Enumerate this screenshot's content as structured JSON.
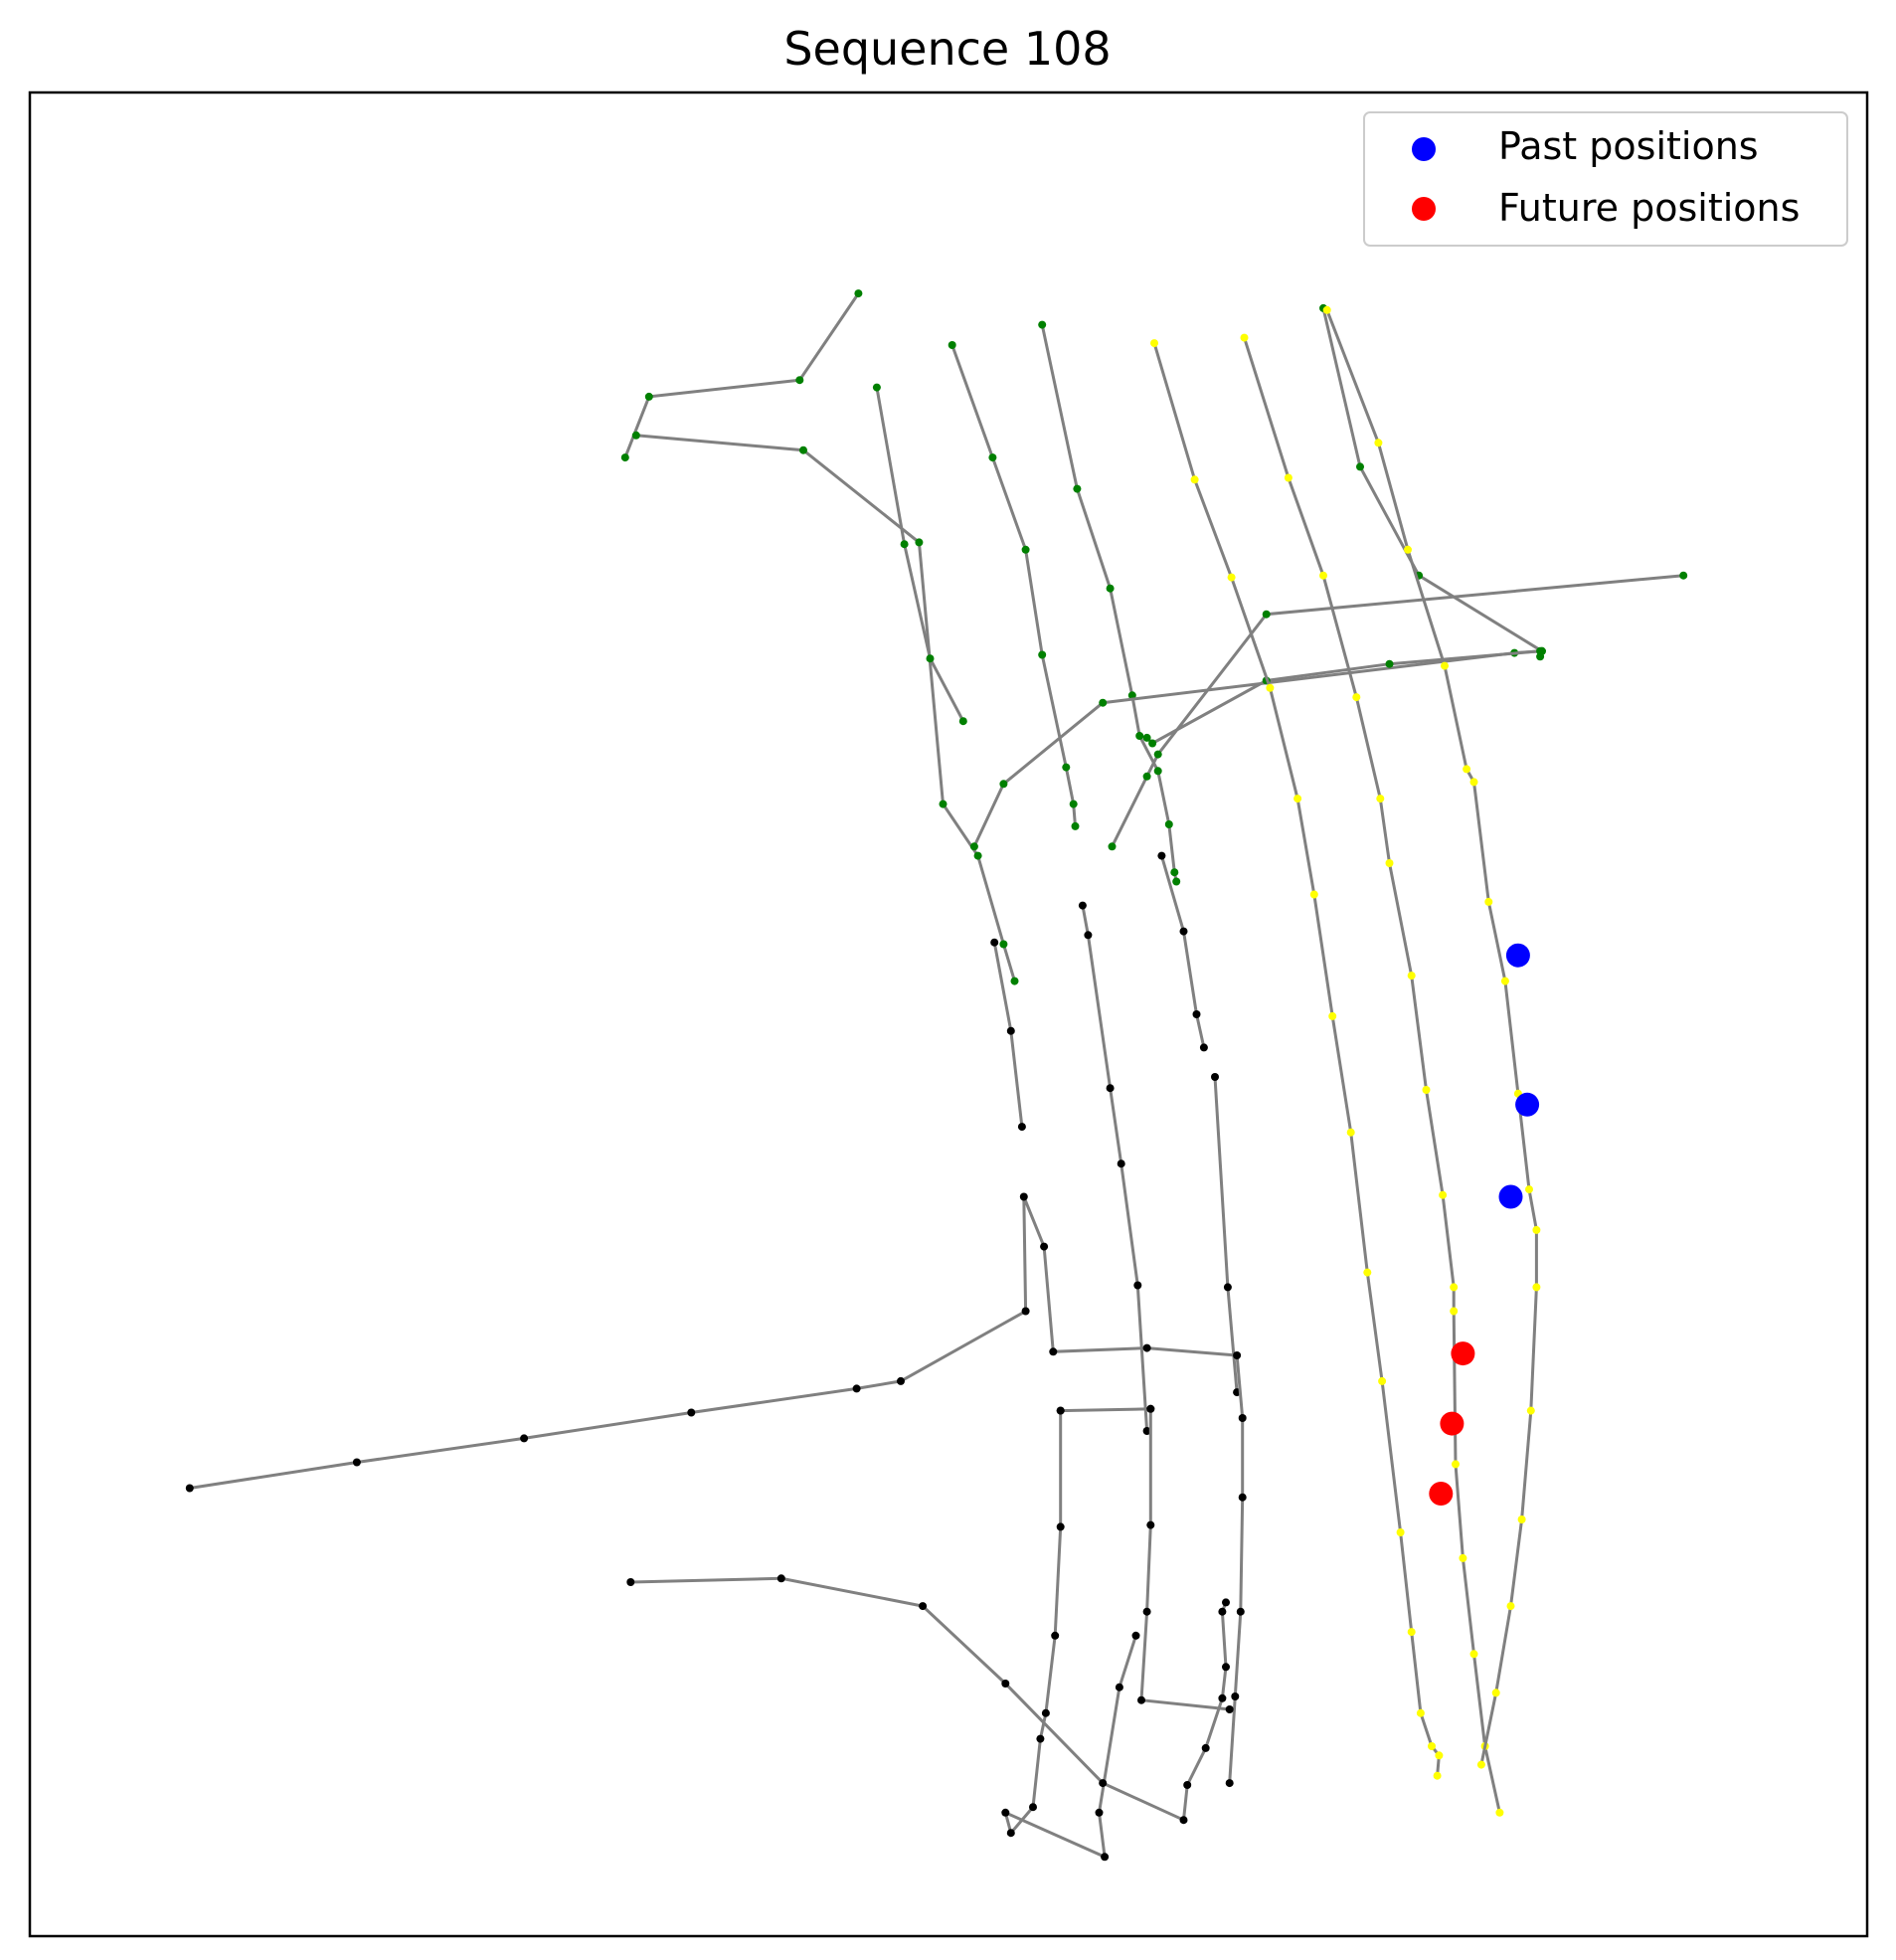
{
  "chart_data": {
    "type": "scatter",
    "title": "Sequence 108",
    "xlim": [
      0,
      1000
    ],
    "ylim": [
      0,
      1000
    ],
    "grid": false,
    "axes_ticks": false,
    "legend": {
      "placement": "top-right",
      "entries": [
        {
          "label": "Past positions",
          "color": "#0000ff"
        },
        {
          "label": "Future positions",
          "color": "#ff0000"
        }
      ]
    },
    "edge_color": "#808080",
    "past_positions": [
      [
        810,
        532
      ],
      [
        815,
        451
      ],
      [
        806,
        401
      ]
    ],
    "future_positions": [
      [
        780,
        316
      ],
      [
        774,
        278
      ],
      [
        768,
        240
      ]
    ],
    "lanes": [
      {
        "color": "#008000",
        "points": [
          [
            451,
            891
          ],
          [
            419,
            844
          ],
          [
            337,
            835
          ],
          [
            324,
            802
          ]
        ]
      },
      {
        "color": "#008000",
        "points": [
          [
            330,
            814
          ],
          [
            421,
            806
          ],
          [
            484,
            756
          ],
          [
            497,
            614
          ],
          [
            516,
            586
          ],
          [
            530,
            538
          ],
          [
            536,
            518
          ]
        ]
      },
      {
        "color": "#008000",
        "points": [
          [
            461,
            840
          ],
          [
            476,
            755
          ],
          [
            490,
            693
          ],
          [
            508,
            659
          ]
        ]
      },
      {
        "color": "#008000",
        "points": [
          [
            502,
            863
          ],
          [
            524,
            802
          ],
          [
            542,
            752
          ],
          [
            551,
            695
          ],
          [
            564,
            634
          ],
          [
            568,
            614
          ],
          [
            569,
            602
          ]
        ]
      },
      {
        "color": "#008000",
        "points": [
          [
            551,
            874
          ],
          [
            570,
            785
          ],
          [
            588,
            731
          ],
          [
            600,
            673
          ],
          [
            604,
            651
          ],
          [
            614,
            632
          ],
          [
            620,
            603
          ],
          [
            623,
            577
          ],
          [
            624,
            572
          ]
        ]
      },
      {
        "color": "#008000",
        "points": [
          [
            589,
            591
          ],
          [
            608,
            629
          ],
          [
            614,
            641
          ],
          [
            673,
            717
          ],
          [
            900,
            738
          ]
        ]
      },
      {
        "color": "#008000",
        "points": [
          [
            514,
            591
          ],
          [
            530,
            625
          ],
          [
            584,
            669
          ],
          [
            808,
            696
          ],
          [
            823,
            697
          ]
        ]
      },
      {
        "color": "#008000",
        "points": [
          [
            704,
            883
          ],
          [
            724,
            797
          ],
          [
            756,
            738
          ],
          [
            823,
            697
          ],
          [
            822,
            694
          ]
        ]
      },
      {
        "color": "#008000",
        "points": [
          [
            822,
            697
          ],
          [
            740,
            690
          ],
          [
            673,
            681
          ],
          [
            611,
            647
          ],
          [
            608,
            650
          ]
        ]
      },
      {
        "color": "#ffff00",
        "points": [
          [
            612,
            864
          ],
          [
            634,
            790
          ],
          [
            654,
            737
          ],
          [
            675,
            677
          ],
          [
            690,
            617
          ],
          [
            699,
            565
          ],
          [
            709,
            499
          ],
          [
            719,
            436
          ],
          [
            728,
            360
          ],
          [
            736,
            301
          ],
          [
            746,
            219
          ],
          [
            752,
            165
          ],
          [
            757,
            121
          ],
          [
            763,
            103
          ],
          [
            767,
            98
          ],
          [
            766,
            87
          ]
        ]
      },
      {
        "color": "#ffff00",
        "points": [
          [
            661,
            867
          ],
          [
            685,
            791
          ],
          [
            704,
            738
          ],
          [
            722,
            672
          ],
          [
            735,
            617
          ],
          [
            740,
            582
          ],
          [
            752,
            521
          ],
          [
            760,
            459
          ],
          [
            769,
            402
          ],
          [
            775,
            352
          ],
          [
            775,
            339
          ],
          [
            776,
            256
          ],
          [
            780,
            205
          ],
          [
            786,
            153
          ],
          [
            792,
            103
          ],
          [
            800,
            67
          ]
        ]
      },
      {
        "color": "#ffff00",
        "points": [
          [
            706,
            882
          ],
          [
            734,
            810
          ],
          [
            750,
            752
          ],
          [
            770,
            689
          ],
          [
            782,
            633
          ],
          [
            786,
            626
          ],
          [
            794,
            561
          ],
          [
            803,
            518
          ],
          [
            810,
            457
          ],
          [
            816,
            405
          ],
          [
            820,
            383
          ],
          [
            820,
            352
          ],
          [
            817,
            285
          ],
          [
            812,
            226
          ],
          [
            806,
            179
          ],
          [
            798,
            132
          ],
          [
            790,
            93
          ]
        ]
      },
      {
        "color": "#000000",
        "points": [
          [
            525,
            539
          ],
          [
            534,
            491
          ],
          [
            540,
            439
          ]
        ]
      },
      {
        "color": "#000000",
        "points": [
          [
            573,
            559
          ],
          [
            576,
            543
          ],
          [
            588,
            460
          ],
          [
            594,
            419
          ],
          [
            603,
            353
          ],
          [
            608,
            274
          ]
        ]
      },
      {
        "color": "#000000",
        "points": [
          [
            616,
            586
          ],
          [
            628,
            545
          ],
          [
            635,
            500
          ],
          [
            639,
            482
          ]
        ]
      },
      {
        "color": "#000000",
        "points": [
          [
            645,
            466
          ],
          [
            652,
            352
          ],
          [
            657,
            295
          ]
        ]
      },
      {
        "color": "#000000",
        "points": [
          [
            87,
            243
          ],
          [
            178,
            257
          ],
          [
            269,
            270
          ],
          [
            360,
            284
          ],
          [
            450,
            297
          ],
          [
            474,
            301
          ],
          [
            542,
            339
          ],
          [
            541,
            401
          ],
          [
            552,
            374
          ],
          [
            557,
            317
          ],
          [
            608,
            319
          ],
          [
            657,
            315
          ],
          [
            660,
            281
          ],
          [
            660,
            238
          ],
          [
            659,
            176
          ],
          [
            656,
            130
          ],
          [
            653,
            83
          ]
        ]
      },
      {
        "color": "#000000",
        "points": [
          [
            561,
            285
          ],
          [
            610,
            286
          ]
        ]
      },
      {
        "color": "#000000",
        "points": [
          [
            610,
            286
          ],
          [
            610,
            223
          ],
          [
            608,
            176
          ],
          [
            605,
            128
          ],
          [
            653,
            123
          ]
        ]
      },
      {
        "color": "#000000",
        "points": [
          [
            561,
            285
          ],
          [
            561,
            222
          ],
          [
            558,
            163
          ],
          [
            553,
            121
          ],
          [
            550,
            107
          ],
          [
            546,
            70
          ],
          [
            534,
            56
          ],
          [
            531,
            67
          ],
          [
            585,
            43
          ],
          [
            582,
            67
          ],
          [
            593,
            135
          ],
          [
            602,
            163
          ]
        ]
      },
      {
        "color": "#000000",
        "points": [
          [
            327,
            192
          ],
          [
            409,
            194
          ],
          [
            486,
            179
          ],
          [
            531,
            137
          ],
          [
            584,
            83
          ],
          [
            628,
            63
          ],
          [
            630,
            82
          ],
          [
            640,
            102
          ],
          [
            649,
            129
          ],
          [
            651,
            146
          ],
          [
            649,
            176
          ],
          [
            651,
            181
          ]
        ]
      }
    ]
  }
}
